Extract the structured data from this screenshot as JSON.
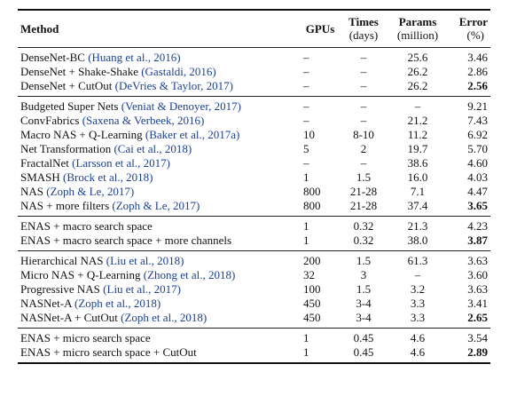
{
  "table": {
    "headers": {
      "method": "Method",
      "gpus": "GPUs",
      "times_title": "Times",
      "times_unit": "(days)",
      "params_title": "Params",
      "params_unit": "(million)",
      "error_title": "Error",
      "error_unit": "(%)"
    },
    "groups": [
      {
        "rows": [
          {
            "method": "DenseNet-BC ",
            "cite": "(Huang et al., 2016)",
            "gpus": "–",
            "times": "–",
            "params": "25.6",
            "error": "3.46",
            "bold": false
          },
          {
            "method": "DenseNet + Shake-Shake ",
            "cite": "(Gastaldi, 2016)",
            "gpus": "–",
            "times": "–",
            "params": "26.2",
            "error": "2.86",
            "bold": false
          },
          {
            "method": "DenseNet + CutOut ",
            "cite": "(DeVries & Taylor, 2017)",
            "gpus": "–",
            "times": "–",
            "params": "26.2",
            "error": "2.56",
            "bold": true
          }
        ]
      },
      {
        "rows": [
          {
            "method": "Budgeted Super Nets ",
            "cite": "(Veniat & Denoyer, 2017)",
            "gpus": "–",
            "times": "–",
            "params": "–",
            "error": "9.21",
            "bold": false
          },
          {
            "method": "ConvFabrics ",
            "cite": "(Saxena & Verbeek, 2016)",
            "gpus": "–",
            "times": "–",
            "params": "21.2",
            "error": "7.43",
            "bold": false
          },
          {
            "method": "Macro NAS + Q-Learning ",
            "cite": "(Baker et al., 2017a)",
            "gpus": "10",
            "times": "8-10",
            "params": "11.2",
            "error": "6.92",
            "bold": false
          },
          {
            "method": "Net Transformation ",
            "cite": "(Cai et al., 2018)",
            "gpus": "5",
            "times": "2",
            "params": "19.7",
            "error": "5.70",
            "bold": false
          },
          {
            "method": "FractalNet ",
            "cite": "(Larsson et al., 2017)",
            "gpus": "–",
            "times": "–",
            "params": "38.6",
            "error": "4.60",
            "bold": false
          },
          {
            "method": "SMASH ",
            "cite": "(Brock et al., 2018)",
            "gpus": "1",
            "times": "1.5",
            "params": "16.0",
            "error": "4.03",
            "bold": false
          },
          {
            "method": "NAS ",
            "cite": "(Zoph & Le, 2017)",
            "gpus": "800",
            "times": "21-28",
            "params": "7.1",
            "error": "4.47",
            "bold": false
          },
          {
            "method": "NAS + more filters ",
            "cite": "(Zoph & Le, 2017)",
            "gpus": "800",
            "times": "21-28",
            "params": "37.4",
            "error": "3.65",
            "bold": true
          }
        ]
      },
      {
        "rows": [
          {
            "method": "ENAS + macro search space",
            "cite": "",
            "gpus": "1",
            "times": "0.32",
            "params": "21.3",
            "error": "4.23",
            "bold": false
          },
          {
            "method": "ENAS + macro search space + more channels",
            "cite": "",
            "gpus": "1",
            "times": "0.32",
            "params": "38.0",
            "error": "3.87",
            "bold": true
          }
        ]
      },
      {
        "rows": [
          {
            "method": "Hierarchical NAS ",
            "cite": "(Liu et al., 2018)",
            "gpus": "200",
            "times": "1.5",
            "params": "61.3",
            "error": "3.63",
            "bold": false
          },
          {
            "method": "Micro NAS + Q-Learning ",
            "cite": "(Zhong et al., 2018)",
            "gpus": "32",
            "times": "3",
            "params": "–",
            "error": "3.60",
            "bold": false
          },
          {
            "method": "Progressive NAS ",
            "cite": "(Liu et al., 2017)",
            "gpus": "100",
            "times": "1.5",
            "params": "3.2",
            "error": "3.63",
            "bold": false
          },
          {
            "method": "NASNet-A ",
            "cite": "(Zoph et al., 2018)",
            "gpus": "450",
            "times": "3-4",
            "params": "3.3",
            "error": "3.41",
            "bold": false
          },
          {
            "method": "NASNet-A + CutOut ",
            "cite": "(Zoph et al., 2018)",
            "gpus": "450",
            "times": "3-4",
            "params": "3.3",
            "error": "2.65",
            "bold": true
          }
        ]
      },
      {
        "rows": [
          {
            "method": "ENAS + micro search space",
            "cite": "",
            "gpus": "1",
            "times": "0.45",
            "params": "4.6",
            "error": "3.54",
            "bold": false
          },
          {
            "method": "ENAS + micro search space + CutOut",
            "cite": "",
            "gpus": "1",
            "times": "0.45",
            "params": "4.6",
            "error": "2.89",
            "bold": true
          }
        ]
      }
    ]
  }
}
